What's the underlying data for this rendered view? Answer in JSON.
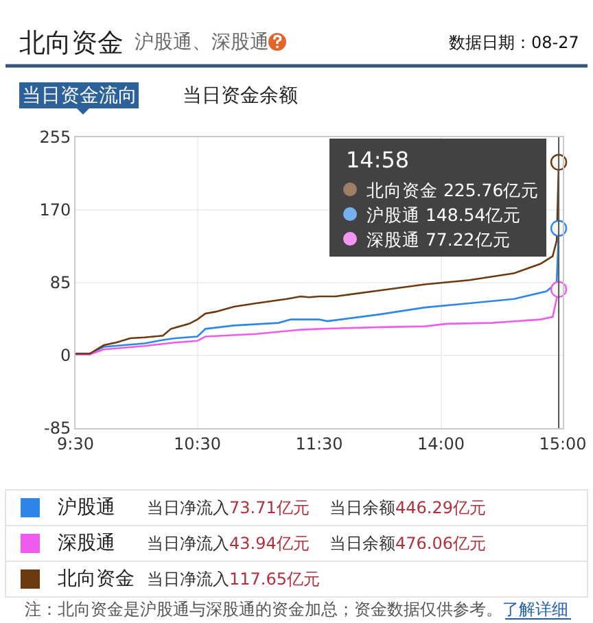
{
  "chart_data": [
    {
      "type": "line",
      "title": "北向资金",
      "subtitle": "沪股通、深股通",
      "annotations": [
        "数据日期：08-27",
        "当日资金流向",
        "当日资金余额",
        "当日净流入73.71亿元",
        "当日余额446.29亿元",
        "当日净流入43.94亿元",
        "当日余额476.06亿元",
        "当日净流入117.65亿元",
        "注：北向资金是沪股通与深股通的资金加总；资金数据仅供参考。",
        "了解详细"
      ],
      "series": [
        {
          "name": "沪股通",
          "color": "#2e86e6",
          "x": [
            9.5,
            9.6167,
            9.7333,
            10.0667,
            10.2167,
            10.3167,
            10.5,
            10.5667,
            10.8,
            11.1667,
            11.2667,
            11.5
          ],
          "values": [
            2,
            2,
            10,
            14,
            18,
            20,
            22,
            31,
            35,
            38,
            42,
            42
          ]
        },
        {
          "name": "深股通",
          "color": "#ee5cee",
          "x": [
            9.5,
            9.6167,
            9.7333,
            10.0667,
            10.3167,
            10.5,
            10.5667,
            10.9833,
            11.35,
            11.5
          ],
          "values": [
            1,
            1,
            7,
            11,
            15,
            17,
            22,
            25,
            30,
            31
          ]
        },
        {
          "name": "北向资金",
          "color": "#6b3a10",
          "x": [
            9.5,
            9.6167,
            9.7333,
            9.8333,
            9.95,
            10.0667,
            10.2167,
            10.2833,
            10.4333,
            10.5,
            10.5667,
            10.65,
            10.8,
            10.9833,
            11.2333,
            11.35,
            11.4167,
            11.5
          ],
          "values": [
            2,
            2,
            12,
            15,
            20,
            21,
            23,
            31,
            37,
            42,
            49,
            51,
            57,
            61,
            66,
            69,
            68,
            69
          ]
        }
      ],
      "xlim": [
        9.5,
        11.5
      ],
      "xticks": [
        {
          "value": 9.5,
          "label": "9:30"
        },
        {
          "value": 10.5,
          "label": "10:30"
        },
        {
          "value": 11.5,
          "label": "11:30"
        }
      ],
      "ylim": [
        -85,
        255
      ],
      "yticks": [
        255,
        170,
        85,
        0,
        -85
      ],
      "grid": true,
      "legend": "bottom"
    },
    {
      "type": "line",
      "annotations": [
        "14:58",
        "北向资金 225.76亿元",
        "沪股通 148.54亿元",
        "深股通 77.22亿元"
      ],
      "series": [
        {
          "color": "#2e86e6",
          "x": [
            13.0,
            13.0667,
            13.5,
            13.8667,
            14.2333,
            14.6,
            14.8667,
            14.95,
            14.9667
          ],
          "values": [
            42,
            40,
            48,
            56,
            61,
            66,
            75,
            85,
            148.54
          ]
        },
        {
          "color": "#ee5cee",
          "x": [
            13.0,
            13.5,
            13.8667,
            14.05,
            14.4167,
            14.8167,
            14.9167,
            14.9667
          ],
          "values": [
            31,
            33,
            34,
            37,
            38,
            42,
            45,
            77.22
          ]
        },
        {
          "color": "#6b3a10",
          "x": [
            13.0,
            13.1333,
            13.5,
            13.8667,
            14.2333,
            14.6,
            14.8167,
            14.9167,
            14.95,
            14.9667
          ],
          "values": [
            69,
            69,
            76,
            83,
            88,
            96,
            107,
            116,
            134,
            225.76
          ]
        }
      ],
      "xlim": [
        13,
        15
      ],
      "xticks": [
        {
          "value": 14,
          "label": "14:00"
        },
        {
          "value": 15,
          "label": "15:00"
        }
      ],
      "ylim": [
        -85,
        255
      ],
      "yticks": [
        255,
        170,
        85,
        0,
        -85
      ],
      "tick_labels": "x",
      "grid": true,
      "ref_lines": [
        {
          "axis": "x",
          "value": 14.9667,
          "color": "#555555"
        }
      ]
    }
  ]
}
